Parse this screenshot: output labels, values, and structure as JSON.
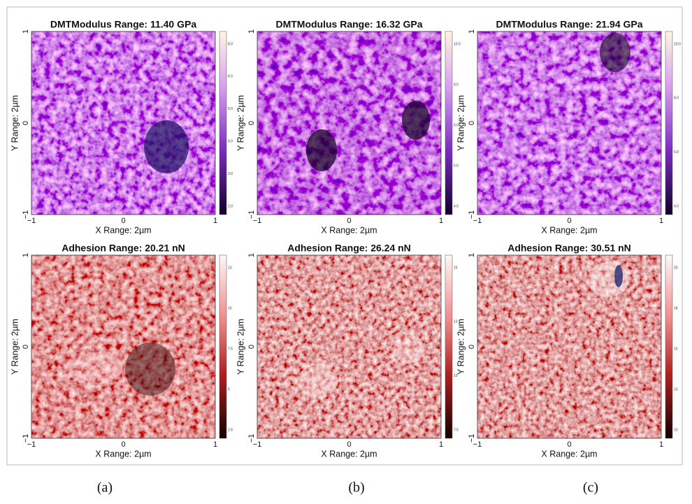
{
  "panels": [
    {
      "title": "DMTModulus Range: 11.40 GPa",
      "x_label": "X Range: 2µm",
      "y_label": "Y Range: 2µm",
      "xticks": [
        "−1",
        "0",
        "1"
      ],
      "yticks": [
        "1",
        "0",
        "−1"
      ],
      "colorbar_ticks": [
        "8.0",
        "6.0",
        "5.0",
        "4.0",
        "3.0",
        "2.0"
      ]
    },
    {
      "title": "DMTModulus Range: 16.32 GPa",
      "x_label": "X Range: 2µm",
      "y_label": "Y Range: 2µm",
      "xticks": [
        "−1",
        "0",
        "1"
      ],
      "yticks": [
        "1",
        "0",
        "−1"
      ],
      "colorbar_ticks": [
        "10.0",
        "8.0",
        "6.0",
        "5.0",
        "4.0"
      ]
    },
    {
      "title": "DMTModulus Range: 21.94 GPa",
      "x_label": "X Range: 2µm",
      "y_label": "Y Range: 2µm",
      "xticks": [
        "−1",
        "0",
        "1"
      ],
      "yticks": [
        "1",
        "0",
        "−1"
      ],
      "colorbar_ticks": [
        "10.0",
        "8.0",
        "6.0",
        "4.0"
      ]
    },
    {
      "title": "Adhesion Range: 20.21 nN",
      "x_label": "X Range: 2µm",
      "y_label": "Y Range: 2µm",
      "xticks": [
        "−1",
        "0",
        "1"
      ],
      "yticks": [
        "1",
        "0",
        "−1"
      ],
      "colorbar_ticks": [
        "13",
        "10",
        "7.5",
        "5",
        "2.5"
      ]
    },
    {
      "title": "Adhesion Range: 26.24 nN",
      "x_label": "X Range: 2µm",
      "y_label": "Y Range: 2µm",
      "xticks": [
        "−1",
        "0",
        "1"
      ],
      "yticks": [
        "1",
        "0",
        "−1"
      ],
      "colorbar_ticks": [
        "15",
        "13",
        "10",
        "7.5"
      ]
    },
    {
      "title": "Adhesion Range: 30.51 nN",
      "x_label": "X Range: 2µm",
      "y_label": "Y Range: 2µm",
      "xticks": [
        "−1",
        "0",
        "1"
      ],
      "yticks": [
        "1",
        "0",
        "−1"
      ],
      "colorbar_ticks": [
        "20",
        "18",
        "15",
        "13",
        "10"
      ]
    }
  ],
  "captions": [
    "(a)",
    "(b)",
    "(c)"
  ]
}
